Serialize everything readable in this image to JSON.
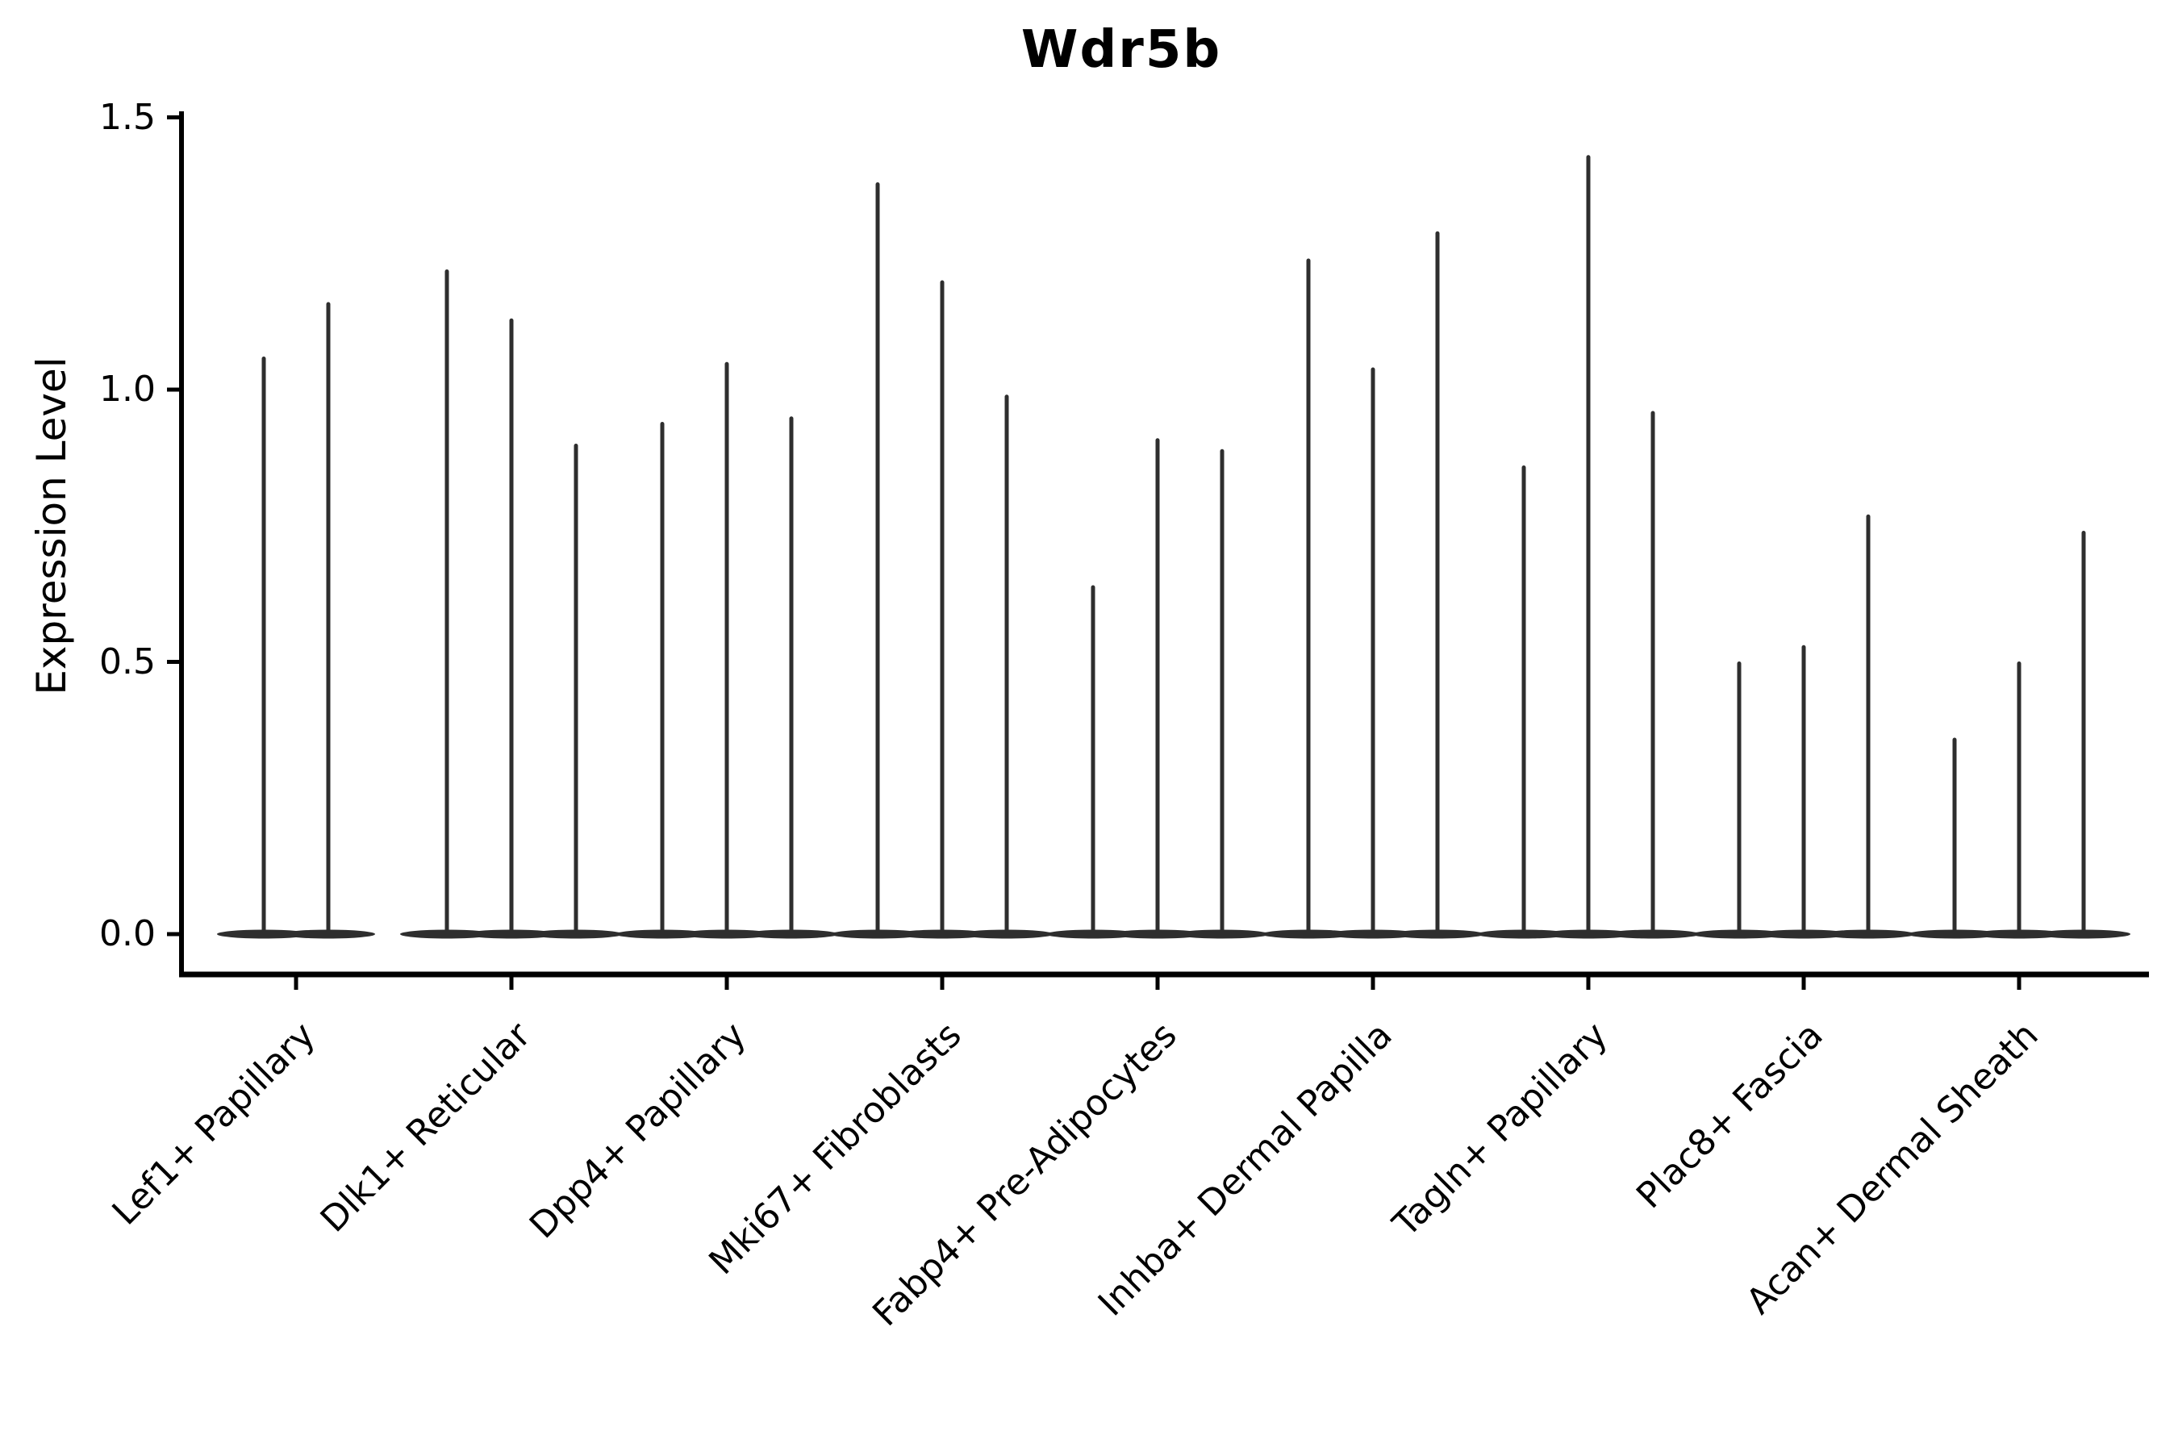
{
  "chart_data": {
    "type": "violin",
    "title": "Wdr5b",
    "ylabel": "Expression Level",
    "xlabel": "",
    "ylim": [
      -0.07,
      1.5
    ],
    "yticks": [
      0.0,
      0.5,
      1.0,
      1.5
    ],
    "ytick_labels": [
      "0.0",
      "0.5",
      "1.0",
      "1.5"
    ],
    "grid": false,
    "legend": "none",
    "categories": [
      "Lef1+ Papillary",
      "Dlk1+ Reticular",
      "Dpp4+ Papillary",
      "Mki67+ Fibroblasts",
      "Fabp4+ Pre-Adipocytes",
      "Inhba+ Dermal Papilla",
      "Tagln+ Papillary",
      "Plac8+ Fascia",
      "Acan+ Dermal Sheath"
    ],
    "groups": [
      {
        "label": "Lef1+ Papillary",
        "violin_maxima": [
          1.06,
          1.16
        ]
      },
      {
        "label": "Dlk1+ Reticular",
        "violin_maxima": [
          1.22,
          1.13,
          0.9
        ]
      },
      {
        "label": "Dpp4+ Papillary",
        "violin_maxima": [
          0.94,
          1.05,
          0.95
        ]
      },
      {
        "label": "Mki67+ Fibroblasts",
        "violin_maxima": [
          1.38,
          1.2,
          0.99
        ]
      },
      {
        "label": "Fabp4+ Pre-Adipocytes",
        "violin_maxima": [
          0.64,
          0.91,
          0.89
        ]
      },
      {
        "label": "Inhba+ Dermal Papilla",
        "violin_maxima": [
          1.24,
          1.04,
          1.29
        ]
      },
      {
        "label": "Tagln+ Papillary",
        "violin_maxima": [
          0.86,
          1.43,
          0.96
        ]
      },
      {
        "label": "Plac8+ Fascia",
        "violin_maxima": [
          0.5,
          0.53,
          0.77
        ]
      },
      {
        "label": "Acan+ Dermal Sheath",
        "violin_maxima": [
          0.36,
          0.5,
          0.74
        ]
      }
    ],
    "violin_baseline_value": 0.0
  },
  "colors": {
    "violin": "#2e2e2e",
    "axis": "#000000",
    "text": "#000000",
    "background": "#ffffff"
  }
}
